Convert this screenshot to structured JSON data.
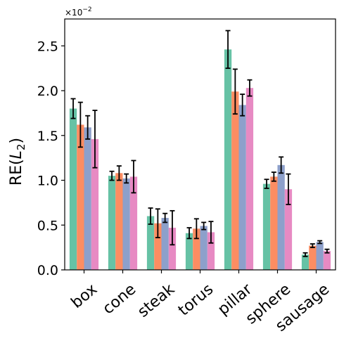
{
  "chart_data": {
    "type": "bar",
    "title": "",
    "xlabel": "",
    "ylabel": "RE",
    "ylabel_sub": "L",
    "ylabel_sub_index": "2",
    "scale_label": "×10",
    "scale_exp": "−2",
    "ylim": [
      0,
      2.8
    ],
    "yticks": [
      0.0,
      0.5,
      1.0,
      1.5,
      2.0,
      2.5
    ],
    "ytick_labels": [
      "0.0",
      "0.5",
      "1.0",
      "1.5",
      "2.0",
      "2.5"
    ],
    "grid": false,
    "legend": "none",
    "categories": [
      "box",
      "cone",
      "steak",
      "torus",
      "pillar",
      "sphere",
      "sausage"
    ],
    "series": [
      {
        "color": "#66c2a5",
        "values": [
          1.8,
          1.05,
          0.6,
          0.41,
          2.46,
          0.96,
          0.17
        ],
        "errors": [
          0.11,
          0.05,
          0.09,
          0.06,
          0.21,
          0.05,
          0.02
        ]
      },
      {
        "color": "#fc8d62",
        "values": [
          1.62,
          1.08,
          0.52,
          0.46,
          1.99,
          1.04,
          0.27
        ],
        "errors": [
          0.25,
          0.08,
          0.16,
          0.11,
          0.25,
          0.05,
          0.02
        ]
      },
      {
        "color": "#8da0cb",
        "values": [
          1.59,
          1.02,
          0.58,
          0.49,
          1.84,
          1.17,
          0.31
        ],
        "errors": [
          0.13,
          0.05,
          0.05,
          0.04,
          0.12,
          0.09,
          0.015
        ]
      },
      {
        "color": "#e78ac3",
        "values": [
          1.46,
          1.04,
          0.47,
          0.42,
          2.03,
          0.9,
          0.21
        ],
        "errors": [
          0.32,
          0.18,
          0.19,
          0.12,
          0.09,
          0.17,
          0.02
        ]
      }
    ]
  }
}
